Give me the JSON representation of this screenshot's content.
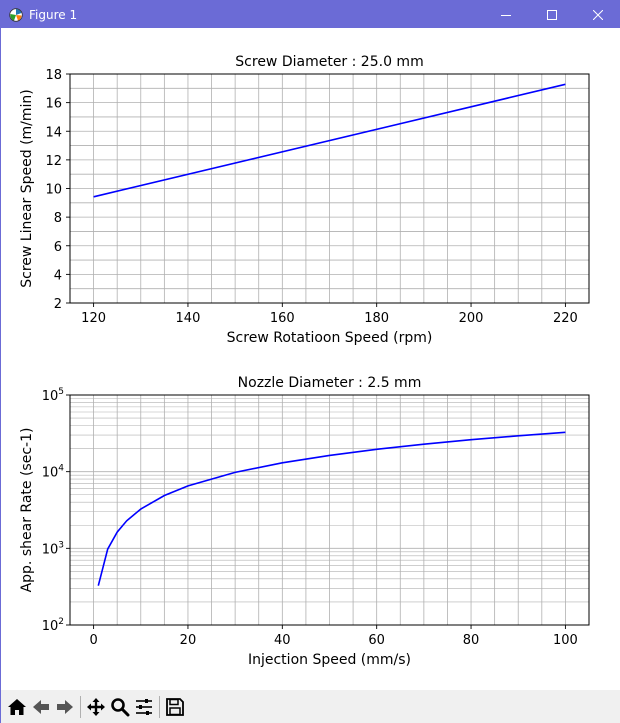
{
  "window": {
    "title": "Figure 1",
    "controls": [
      "minimize",
      "maximize",
      "close"
    ]
  },
  "toolbar": {
    "buttons": [
      {
        "name": "home-icon",
        "tooltip": "Reset original view"
      },
      {
        "name": "back-icon",
        "tooltip": "Back to previous view"
      },
      {
        "name": "forward-icon",
        "tooltip": "Forward to next view"
      },
      {
        "name": "pan-icon",
        "tooltip": "Pan axes"
      },
      {
        "name": "zoom-icon",
        "tooltip": "Zoom to rectangle"
      },
      {
        "name": "configure-subplots-icon",
        "tooltip": "Configure subplots"
      },
      {
        "name": "save-icon",
        "tooltip": "Save the figure"
      }
    ]
  },
  "chart_data": [
    {
      "type": "line",
      "title": "Screw Diameter : 25.0 mm",
      "xlabel": "Screw Rotatioon Speed (rpm)",
      "ylabel": "Screw Linear Speed (m/min)",
      "xlim": [
        115,
        225
      ],
      "ylim": [
        2,
        18
      ],
      "xticks": [
        120,
        140,
        160,
        180,
        200,
        220
      ],
      "yticks": [
        2,
        4,
        6,
        8,
        10,
        12,
        14,
        16,
        18
      ],
      "grid": true,
      "color": "#0000ff",
      "x": [
        120,
        220
      ],
      "y": [
        9.42,
        17.28
      ]
    },
    {
      "type": "line",
      "title": "Nozzle Diameter : 2.5 mm",
      "xlabel": "Injection Speed (mm/s)",
      "ylabel": "App. shear Rate (sec-1)",
      "xlim": [
        -5,
        105
      ],
      "ylim": [
        100,
        100000
      ],
      "yscale": "log",
      "xticks": [
        0,
        20,
        40,
        60,
        80,
        100
      ],
      "yticks": [
        100,
        1000,
        10000,
        100000
      ],
      "ytick_labels": [
        "10^2",
        "10^3",
        "10^4",
        "10^5"
      ],
      "grid": true,
      "color": "#0000ff",
      "x": [
        1,
        3,
        5,
        7,
        10,
        15,
        20,
        30,
        40,
        50,
        60,
        70,
        80,
        90,
        100
      ],
      "y": [
        326,
        978,
        1630,
        2282,
        3260,
        4890,
        6520,
        9780,
        13040,
        16300,
        19560,
        22820,
        26080,
        29340,
        32600
      ]
    }
  ]
}
